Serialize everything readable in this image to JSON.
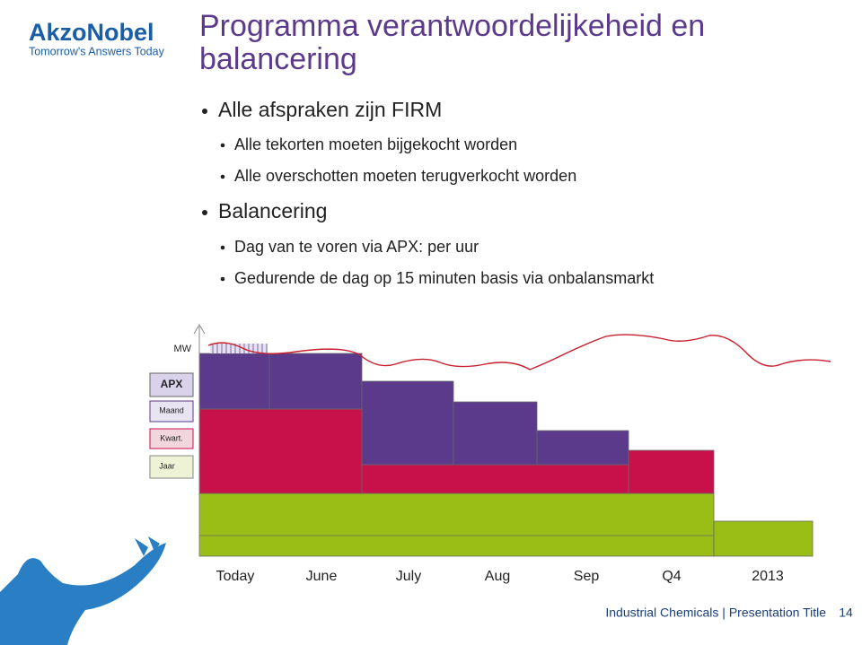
{
  "logo": {
    "name": "AkzoNobel",
    "tagline": "Tomorrow's Answers Today"
  },
  "title": [
    "Programma verantwoordelijkeheid en",
    "balancering"
  ],
  "bullets": [
    {
      "text": "Alle afspraken zijn FIRM",
      "items": [
        "Alle tekorten moeten bijgekocht worden",
        "Alle overschotten moeten terugverkocht worden"
      ]
    },
    {
      "text": "Balancering",
      "items": [
        "Dag van te voren via APX: per uur",
        "Gedurende de dag op 15 minuten basis via onbalansmarkt"
      ]
    }
  ],
  "diagram": {
    "axis_label": "MW",
    "legend": [
      "APX",
      "Maand",
      "Kwart.",
      "Jaar"
    ],
    "periods": [
      "Today",
      "June",
      "July",
      "Aug",
      "Sep",
      "Q4",
      "2013"
    ]
  },
  "footer": {
    "text": "Industrial Chemicals | Presentation Title",
    "page": "14"
  }
}
